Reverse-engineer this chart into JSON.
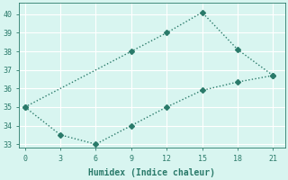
{
  "xlabel": "Humidex (Indice chaleur)",
  "line1_x": [
    0,
    9,
    12,
    15,
    18,
    21
  ],
  "line1_y": [
    35,
    38,
    39,
    40.1,
    38.1,
    36.7
  ],
  "line2_x": [
    0,
    3,
    6,
    9,
    12,
    15,
    18,
    21
  ],
  "line2_y": [
    35,
    33.5,
    33.0,
    34.0,
    35.0,
    35.9,
    36.35,
    36.7
  ],
  "line_color": "#2a7a6a",
  "bg_color": "#d8f5f0",
  "grid_color": "#b8ddd8",
  "xlim": [
    -0.5,
    22
  ],
  "ylim": [
    32.8,
    40.6
  ],
  "xticks": [
    0,
    3,
    6,
    9,
    12,
    15,
    18,
    21
  ],
  "yticks": [
    33,
    34,
    35,
    36,
    37,
    38,
    39,
    40
  ],
  "line_style": ":",
  "marker": "D",
  "marker_size": 3,
  "linewidth": 1.0,
  "tick_fontsize": 6,
  "xlabel_fontsize": 7
}
